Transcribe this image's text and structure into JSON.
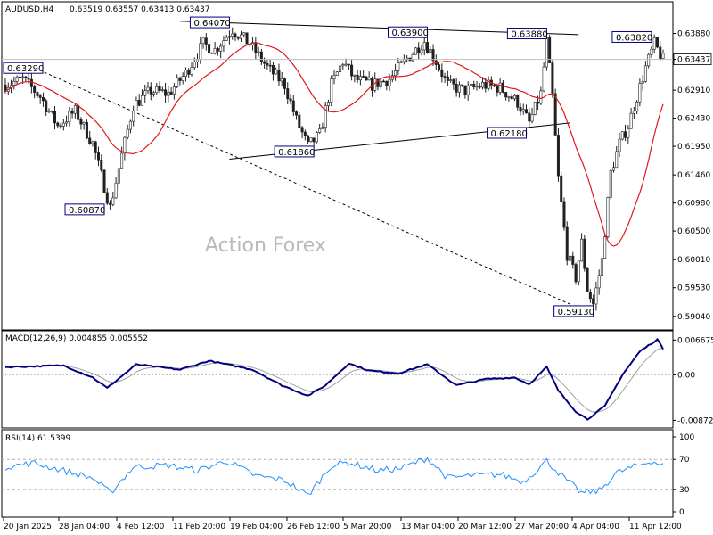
{
  "header": {
    "symbol": "AUDUSD,H4",
    "ohlc": "0.63519 0.63557 0.63413 0.63437"
  },
  "watermark": "Action Forex",
  "colors": {
    "candle": "#202020",
    "ma_red": "#e0191b",
    "macd_line": "#000080",
    "macd_signal": "#a0a0a0",
    "rsi_line": "#1e90ff",
    "trendline": "#000000",
    "price_line": "#c0c0c0",
    "label_border": "#000080"
  },
  "chart_data": [
    {
      "type": "candlestick",
      "panel": "price",
      "title": "AUDUSD,H4",
      "ylim": [
        0.589,
        0.643
      ],
      "y_ticks": [
        "0.63880",
        "0.63437",
        "0.62910",
        "0.62430",
        "0.61950",
        "0.61460",
        "0.60980",
        "0.60500",
        "0.60010",
        "0.59530",
        "0.59040"
      ],
      "y_tick_values": [
        0.6388,
        0.63437,
        0.6291,
        0.6243,
        0.6195,
        0.6146,
        0.6098,
        0.605,
        0.6001,
        0.5953,
        0.5904
      ],
      "current_price": 0.63437,
      "current_price_label": "0.63437",
      "x_ticks": [
        "20 Jan 2025",
        "28 Jan 04:00",
        "4 Feb 12:00",
        "11 Feb 20:00",
        "19 Feb 04:00",
        "26 Feb 12:00",
        "5 Mar 20:00",
        "13 Mar 04:00",
        "20 Mar 12:00",
        "27 Mar 20:00",
        "4 Apr 04:00",
        "11 Apr 12:00"
      ],
      "anchors": [
        {
          "bar": 0,
          "price": 0.63
        },
        {
          "bar": 6,
          "price": 0.631
        },
        {
          "bar": 12,
          "price": 0.628
        },
        {
          "bar": 18,
          "price": 0.623
        },
        {
          "bar": 24,
          "price": 0.6255
        },
        {
          "bar": 30,
          "price": 0.62
        },
        {
          "bar": 36,
          "price": 0.609
        },
        {
          "bar": 40,
          "price": 0.618
        },
        {
          "bar": 44,
          "price": 0.6265
        },
        {
          "bar": 50,
          "price": 0.629
        },
        {
          "bar": 56,
          "price": 0.6285
        },
        {
          "bar": 62,
          "price": 0.632
        },
        {
          "bar": 68,
          "price": 0.637
        },
        {
          "bar": 72,
          "price": 0.636
        },
        {
          "bar": 78,
          "price": 0.6395
        },
        {
          "bar": 84,
          "price": 0.637
        },
        {
          "bar": 90,
          "price": 0.633
        },
        {
          "bar": 96,
          "price": 0.63
        },
        {
          "bar": 100,
          "price": 0.624
        },
        {
          "bar": 104,
          "price": 0.6195
        },
        {
          "bar": 108,
          "price": 0.6215
        },
        {
          "bar": 112,
          "price": 0.63
        },
        {
          "bar": 116,
          "price": 0.634
        },
        {
          "bar": 120,
          "price": 0.631
        },
        {
          "bar": 126,
          "price": 0.63
        },
        {
          "bar": 132,
          "price": 0.631
        },
        {
          "bar": 138,
          "price": 0.6345
        },
        {
          "bar": 144,
          "price": 0.6375
        },
        {
          "bar": 148,
          "price": 0.634
        },
        {
          "bar": 152,
          "price": 0.63
        },
        {
          "bar": 158,
          "price": 0.629
        },
        {
          "bar": 164,
          "price": 0.63
        },
        {
          "bar": 170,
          "price": 0.6295
        },
        {
          "bar": 176,
          "price": 0.627
        },
        {
          "bar": 180,
          "price": 0.6235
        },
        {
          "bar": 184,
          "price": 0.6285
        },
        {
          "bar": 186,
          "price": 0.6375
        },
        {
          "bar": 188,
          "price": 0.628
        },
        {
          "bar": 190,
          "price": 0.614
        },
        {
          "bar": 193,
          "price": 0.601
        },
        {
          "bar": 196,
          "price": 0.597
        },
        {
          "bar": 198,
          "price": 0.603
        },
        {
          "bar": 200,
          "price": 0.595
        },
        {
          "bar": 202,
          "price": 0.5925
        },
        {
          "bar": 205,
          "price": 0.6
        },
        {
          "bar": 208,
          "price": 0.615
        },
        {
          "bar": 211,
          "price": 0.62
        },
        {
          "bar": 214,
          "price": 0.623
        },
        {
          "bar": 217,
          "price": 0.628
        },
        {
          "bar": 220,
          "price": 0.633
        },
        {
          "bar": 223,
          "price": 0.637
        },
        {
          "bar": 226,
          "price": 0.6343
        }
      ],
      "price_labels": [
        {
          "text": "0.63290",
          "price": 0.6329,
          "bar": 0
        },
        {
          "text": "0.64070",
          "price": 0.6407,
          "bar": 77
        },
        {
          "text": "0.63900",
          "price": 0.639,
          "bar": 145
        },
        {
          "text": "0.63880",
          "price": 0.6388,
          "bar": 186
        },
        {
          "text": "0.63820",
          "price": 0.6382,
          "bar": 222
        },
        {
          "text": "0.62180",
          "price": 0.6218,
          "bar": 179
        },
        {
          "text": "0.61860",
          "price": 0.6186,
          "bar": 106
        },
        {
          "text": "0.60870",
          "price": 0.6087,
          "bar": 34
        },
        {
          "text": "0.59130",
          "price": 0.5913,
          "bar": 202
        }
      ],
      "trendlines": [
        {
          "from": {
            "bar": 60,
            "price": 0.6409
          },
          "to": {
            "bar": 197,
            "price": 0.6386
          },
          "style": "solid"
        },
        {
          "from": {
            "bar": 77,
            "price": 0.6173
          },
          "to": {
            "bar": 194,
            "price": 0.6235
          },
          "style": "solid"
        },
        {
          "from": {
            "bar": 10,
            "price": 0.6329
          },
          "to": {
            "bar": 194,
            "price": 0.5925
          },
          "style": "dashed"
        }
      ],
      "series": [
        {
          "name": "",
          "kind": "moving_average"
        }
      ]
    },
    {
      "type": "line",
      "panel": "macd",
      "title": "MACD(12,26,9) 0.004855 0.005552",
      "ylim": [
        -0.0095,
        0.0076
      ],
      "y_ticks": [
        "0.006675",
        "0.00",
        "-0.008724"
      ],
      "y_tick_values": [
        0.006675,
        0.0,
        -0.008724
      ],
      "anchors": [
        {
          "bar": 0,
          "value": 0.0015
        },
        {
          "bar": 20,
          "value": 0.0018
        },
        {
          "bar": 30,
          "value": -0.0005
        },
        {
          "bar": 35,
          "value": -0.0025
        },
        {
          "bar": 45,
          "value": 0.002
        },
        {
          "bar": 60,
          "value": 0.001
        },
        {
          "bar": 70,
          "value": 0.0027
        },
        {
          "bar": 85,
          "value": 0.001
        },
        {
          "bar": 95,
          "value": -0.002
        },
        {
          "bar": 104,
          "value": -0.004
        },
        {
          "bar": 110,
          "value": -0.002
        },
        {
          "bar": 118,
          "value": 0.0022
        },
        {
          "bar": 125,
          "value": 0.0008
        },
        {
          "bar": 135,
          "value": 0.0003
        },
        {
          "bar": 145,
          "value": 0.002
        },
        {
          "bar": 155,
          "value": -0.002
        },
        {
          "bar": 165,
          "value": -0.0008
        },
        {
          "bar": 175,
          "value": -0.0005
        },
        {
          "bar": 180,
          "value": -0.0018
        },
        {
          "bar": 186,
          "value": 0.0015
        },
        {
          "bar": 190,
          "value": -0.003
        },
        {
          "bar": 196,
          "value": -0.007
        },
        {
          "bar": 200,
          "value": -0.0085
        },
        {
          "bar": 206,
          "value": -0.006
        },
        {
          "bar": 212,
          "value": 0.0
        },
        {
          "bar": 218,
          "value": 0.0045
        },
        {
          "bar": 224,
          "value": 0.0068
        },
        {
          "bar": 226,
          "value": 0.005
        }
      ]
    },
    {
      "type": "line",
      "panel": "rsi",
      "title": "RSI(14) 61.5399",
      "ylim": [
        0,
        100
      ],
      "y_ticks": [
        "100",
        "70",
        "30",
        "0"
      ],
      "y_tick_values": [
        100,
        70,
        30,
        0
      ],
      "levels": [
        70,
        30
      ],
      "anchors": [
        {
          "bar": 0,
          "value": 60
        },
        {
          "bar": 10,
          "value": 65
        },
        {
          "bar": 20,
          "value": 55
        },
        {
          "bar": 30,
          "value": 45
        },
        {
          "bar": 36,
          "value": 25
        },
        {
          "bar": 44,
          "value": 60
        },
        {
          "bar": 56,
          "value": 62
        },
        {
          "bar": 66,
          "value": 55
        },
        {
          "bar": 76,
          "value": 68
        },
        {
          "bar": 86,
          "value": 48
        },
        {
          "bar": 96,
          "value": 42
        },
        {
          "bar": 104,
          "value": 22
        },
        {
          "bar": 112,
          "value": 62
        },
        {
          "bar": 118,
          "value": 66
        },
        {
          "bar": 128,
          "value": 55
        },
        {
          "bar": 136,
          "value": 58
        },
        {
          "bar": 145,
          "value": 72
        },
        {
          "bar": 152,
          "value": 45
        },
        {
          "bar": 160,
          "value": 48
        },
        {
          "bar": 170,
          "value": 50
        },
        {
          "bar": 178,
          "value": 40
        },
        {
          "bar": 186,
          "value": 68
        },
        {
          "bar": 192,
          "value": 45
        },
        {
          "bar": 198,
          "value": 25
        },
        {
          "bar": 204,
          "value": 28
        },
        {
          "bar": 210,
          "value": 52
        },
        {
          "bar": 216,
          "value": 60
        },
        {
          "bar": 222,
          "value": 68
        },
        {
          "bar": 226,
          "value": 62
        }
      ]
    }
  ]
}
